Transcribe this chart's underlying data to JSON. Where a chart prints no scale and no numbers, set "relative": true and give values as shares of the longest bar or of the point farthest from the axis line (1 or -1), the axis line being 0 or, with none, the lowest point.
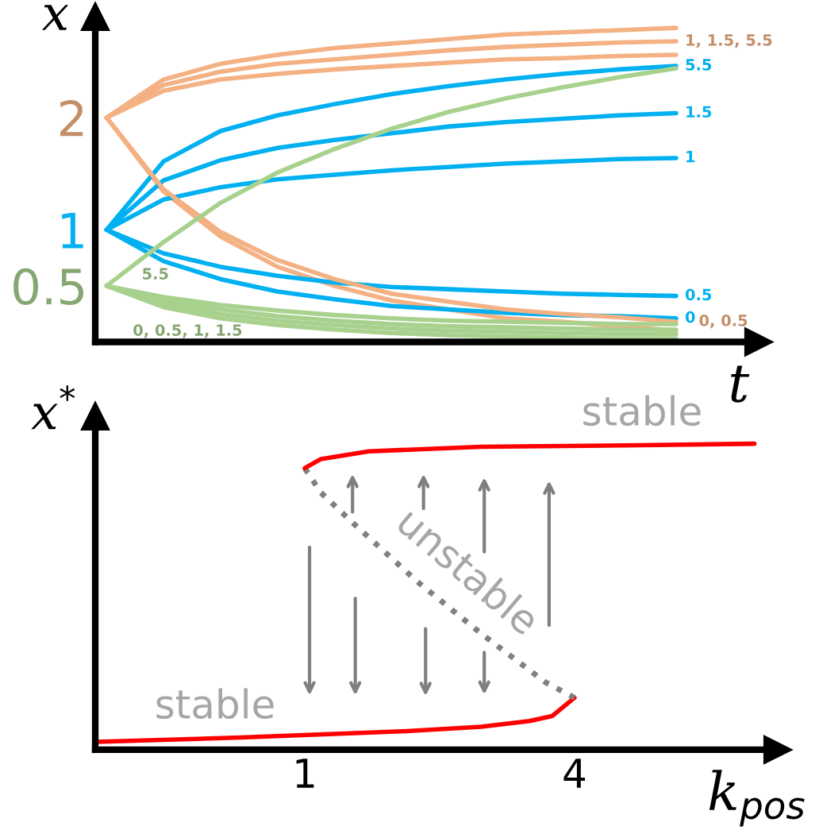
{
  "chart_data": [
    {
      "type": "line",
      "xlabel": "t",
      "ylabel": "x",
      "ylim": [
        0,
        2.9
      ],
      "yticks": [
        0.5,
        1,
        2
      ],
      "tick_labels": "y",
      "marker": "none",
      "line_style": "solid",
      "categories": [
        null,
        null,
        null,
        null,
        null,
        null,
        null,
        null,
        null,
        null,
        null
      ],
      "series": [
        {
          "color": "#f4b183",
          "values": [
            2,
            2.34,
            2.48,
            2.56,
            2.62,
            2.66,
            2.7,
            2.74,
            2.76,
            2.78,
            2.8
          ]
        },
        {
          "name": "1, 1.5, 5.5",
          "color": "#f4b183",
          "values": [
            2,
            2.29,
            2.41,
            2.48,
            2.52,
            2.56,
            2.6,
            2.63,
            2.65,
            2.67,
            2.68
          ]
        },
        {
          "color": "#f4b183",
          "values": [
            2,
            2.24,
            2.34,
            2.39,
            2.43,
            2.46,
            2.49,
            2.52,
            2.53,
            2.55,
            2.56
          ]
        },
        {
          "color": "#f4b183",
          "values": [
            2,
            1.34,
            0.94,
            0.67,
            0.5,
            0.37,
            0.29,
            0.21,
            0.18,
            0.14,
            0.1
          ]
        },
        {
          "name": "5.5",
          "color": "#00b0f0",
          "values": [
            1,
            1.61,
            1.88,
            2.02,
            2.12,
            2.21,
            2.28,
            2.34,
            2.39,
            2.43,
            2.46
          ]
        },
        {
          "name": "1.5",
          "color": "#00b0f0",
          "values": [
            1,
            1.44,
            1.62,
            1.73,
            1.8,
            1.86,
            1.92,
            1.96,
            1.99,
            2.02,
            2.04
          ]
        },
        {
          "name": "1",
          "color": "#00b0f0",
          "values": [
            1,
            1.27,
            1.38,
            1.45,
            1.49,
            1.53,
            1.56,
            1.59,
            1.61,
            1.63,
            1.64
          ]
        },
        {
          "name": "0.5",
          "color": "#00b0f0",
          "values": [
            1,
            0.79,
            0.67,
            0.59,
            0.53,
            0.49,
            0.47,
            0.45,
            0.43,
            0.42,
            0.41
          ]
        },
        {
          "name": "0",
          "color": "#00b0f0",
          "values": [
            1,
            0.72,
            0.56,
            0.45,
            0.38,
            0.32,
            0.29,
            0.26,
            0.24,
            0.23,
            0.21
          ]
        },
        {
          "name": "0, 0.5",
          "color": "#f4b183",
          "values": [
            2,
            1.36,
            0.98,
            0.73,
            0.56,
            0.43,
            0.36,
            0.29,
            0.25,
            0.22,
            0.18
          ]
        },
        {
          "name": "5.5",
          "color": "#a9d18e",
          "values": [
            0.5,
            0.89,
            1.24,
            1.51,
            1.72,
            1.9,
            2.05,
            2.17,
            2.27,
            2.36,
            2.44
          ]
        },
        {
          "color": "#a9d18e",
          "values": [
            0.5,
            0.4,
            0.33,
            0.28,
            0.24,
            0.21,
            0.19,
            0.18,
            0.17,
            0.16,
            0.16
          ]
        },
        {
          "color": "#a9d18e",
          "values": [
            0.5,
            0.37,
            0.29,
            0.23,
            0.19,
            0.16,
            0.14,
            0.13,
            0.12,
            0.11,
            0.11
          ]
        },
        {
          "color": "#a9d18e",
          "values": [
            0.5,
            0.34,
            0.25,
            0.19,
            0.15,
            0.12,
            0.1,
            0.09,
            0.08,
            0.07,
            0.07
          ]
        },
        {
          "name": "0, 0.5, 1, 1.5",
          "color": "#a9d18e",
          "values": [
            0.5,
            0.31,
            0.21,
            0.15,
            0.11,
            0.08,
            0.06,
            0.05,
            0.04,
            0.03,
            0.03
          ]
        }
      ]
    },
    {
      "type": "line",
      "xlabel": "k$_{pos}$",
      "ylabel": "x$^{*}$",
      "relative": true,
      "xlim": [
        -1.33,
        6.26
      ],
      "xticks": [
        1,
        4
      ],
      "tick_labels": "x",
      "marker": "none",
      "series": [
        {
          "color": "#ff0000",
          "line_style": "solid",
          "x": [
            -1.33,
            0.29,
            2.07,
            2.96,
            3.5,
            3.75,
            4.0
          ],
          "values": [
            0.026,
            0.04,
            0.06,
            0.075,
            0.094,
            0.11,
            0.17
          ]
        },
        {
          "color": "#808080",
          "line_style": "dotted",
          "x": [
            4.0,
            3.68,
            2.96,
            2.25,
            1.54,
            1.18,
            1.0
          ],
          "values": [
            0.17,
            0.22,
            0.38,
            0.55,
            0.74,
            0.84,
            0.92
          ]
        },
        {
          "color": "#ff0000",
          "line_style": "solid",
          "x": [
            1.0,
            1.18,
            1.71,
            2.96,
            4.75,
            6.0
          ],
          "values": [
            0.92,
            0.95,
            0.975,
            0.99,
            0.995,
            1.0
          ]
        }
      ],
      "annotations": [
        "stable",
        "unstable",
        "stable"
      ]
    }
  ]
}
